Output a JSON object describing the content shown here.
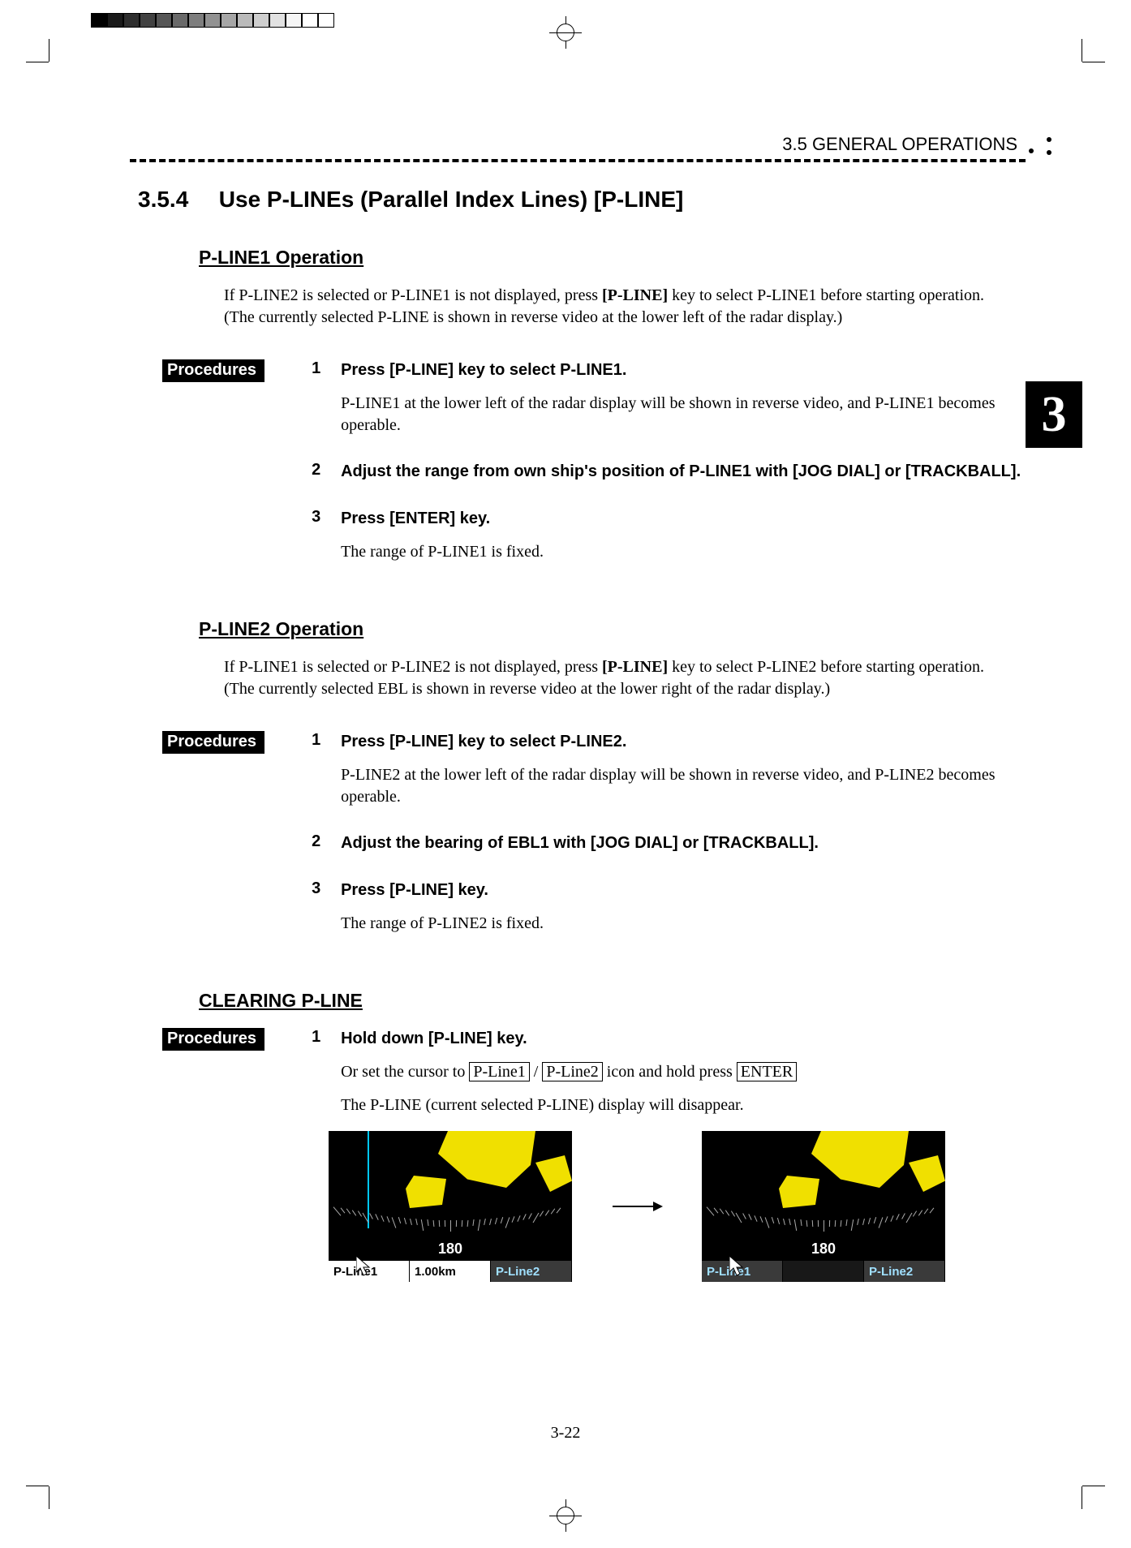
{
  "header": {
    "breadcrumb": "3.5   GENERAL  OPERATIONS"
  },
  "chapter_tab": "3",
  "page_number": "3-22",
  "section": {
    "number": "3.5.4",
    "title": "Use P-LINEs (Parallel Index Lines) [P-LINE]"
  },
  "pline1": {
    "heading": "P-LINE1 Operation",
    "intro_a": "If P-LINE2 is selected or P-LINE1 is not displayed, press ",
    "intro_bold": "[P-LINE]",
    "intro_b": " key to select P-LINE1 before starting operation.",
    "intro_note": "(The currently selected P-LINE is shown in reverse video at the lower left of the radar display.)",
    "proc_label": "Procedures",
    "steps": [
      {
        "n": "1",
        "title": "Press [P-LINE] key to select P-LINE1.",
        "desc": "P-LINE1 at the lower left of the radar display will be shown in reverse video, and P-LINE1 becomes operable."
      },
      {
        "n": "2",
        "title": "Adjust the range from own ship's position of P-LINE1 with [JOG DIAL] or [TRACKBALL].",
        "desc": ""
      },
      {
        "n": "3",
        "title": "Press [ENTER] key.",
        "desc": "The range of P-LINE1 is fixed."
      }
    ]
  },
  "pline2": {
    "heading": "P-LINE2 Operation",
    "intro_a": "If P-LINE1 is selected or P-LINE2 is not displayed, press ",
    "intro_bold": "[P-LINE]",
    "intro_b": " key to select P-LINE2 before starting operation.",
    "intro_note": "(The currently selected EBL is shown in reverse video at the lower right of the radar display.)",
    "proc_label": "Procedures",
    "steps": [
      {
        "n": "1",
        "title": "Press [P-LINE] key to select P-LINE2.",
        "desc": "P-LINE2 at the lower left of the radar display will be shown in reverse video, and P-LINE2 becomes operable."
      },
      {
        "n": "2",
        "title": "Adjust the bearing of EBL1 with [JOG DIAL] or [TRACKBALL].",
        "desc": ""
      },
      {
        "n": "3",
        "title": "Press [P-LINE] key.",
        "desc": "The range of P-LINE2 is fixed."
      }
    ]
  },
  "clearing": {
    "heading": "CLEARING P-LINE",
    "proc_label": "Procedures",
    "step_n": "1",
    "step_title": "Hold down [P-LINE] key.",
    "desc_pre": "Or set the cursor to ",
    "box1": "P-Line1",
    "sep": " / ",
    "box2": "P-Line2",
    "desc_mid": " icon and hold press ",
    "box3": "ENTER",
    "desc2": "The P-LINE (current selected P-LINE) display will disappear."
  },
  "radar": {
    "degree": "180",
    "left": {
      "pline1_label": "P-Line1",
      "pline1_value": "1.00km",
      "pline2_label": "P-Line2",
      "cell_colors": {
        "c1_bg": "#ffffff",
        "c1_fg": "#000000",
        "c2_bg": "#ffffff",
        "c2_fg": "#000000",
        "c3_bg": "#3a3a3a",
        "c3_fg": "#a0e0ff"
      }
    },
    "right": {
      "pline1_label": "P-Line1",
      "pline2_label": "P-Line2",
      "cell_colors": {
        "c1_bg": "#3a3a3a",
        "c1_fg": "#a0e0ff",
        "c2_bg": "#181818",
        "c2_fg": "#181818",
        "c3_bg": "#3a3a3a",
        "c3_fg": "#a0e0ff"
      }
    },
    "land_color": "#f0e000",
    "pline_color": "#00c8ff"
  },
  "swatches": [
    "#000000",
    "#1a1a1a",
    "#2e2e2e",
    "#424242",
    "#565656",
    "#6a6a6a",
    "#7e7e7e",
    "#929292",
    "#a6a6a6",
    "#bababa",
    "#cecece",
    "#e2e2e2",
    "#f6f6f6",
    "#ffffff",
    "#ffffff"
  ]
}
